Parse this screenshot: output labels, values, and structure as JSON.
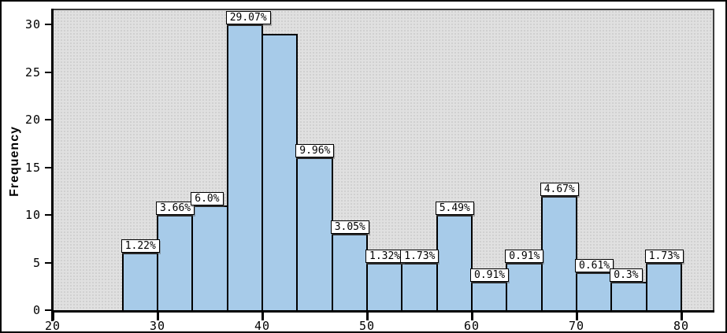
{
  "chart_data": {
    "type": "bar",
    "subtype": "histogram",
    "title": "",
    "xlabel": "",
    "ylabel": "Frequency",
    "grid": false,
    "legend_position": "none",
    "xlim": [
      20,
      83
    ],
    "ylim": [
      0,
      31.6
    ],
    "x_tick_labels": [
      "20",
      "30",
      "40",
      "50",
      "60",
      "70",
      "80"
    ],
    "x_tick_values": [
      20,
      30,
      40,
      50,
      60,
      70,
      80
    ],
    "y_tick_labels": [
      "0",
      "5",
      "10",
      "15",
      "20",
      "25",
      "30"
    ],
    "y_tick_values": [
      0,
      5,
      10,
      15,
      20,
      25,
      30
    ],
    "bin_width": 3.3333,
    "bars": [
      {
        "bin_start": 26.67,
        "frequency": 6,
        "label": "1.22%"
      },
      {
        "bin_start": 30.0,
        "frequency": 10,
        "label": "3.66%"
      },
      {
        "bin_start": 33.33,
        "frequency": 11,
        "label": "6.0%"
      },
      {
        "bin_start": 36.67,
        "frequency": 30,
        "label": "29.07%"
      },
      {
        "bin_start": 40.0,
        "frequency": 29,
        "label": ""
      },
      {
        "bin_start": 43.33,
        "frequency": 16,
        "label": "9.96%"
      },
      {
        "bin_start": 46.67,
        "frequency": 8,
        "label": "3.05%"
      },
      {
        "bin_start": 50.0,
        "frequency": 5,
        "label": "1.32%"
      },
      {
        "bin_start": 53.33,
        "frequency": 5,
        "label": "1.73%"
      },
      {
        "bin_start": 56.67,
        "frequency": 10,
        "label": "5.49%"
      },
      {
        "bin_start": 60.0,
        "frequency": 3,
        "label": "0.91%"
      },
      {
        "bin_start": 63.33,
        "frequency": 5,
        "label": "0.91%"
      },
      {
        "bin_start": 66.67,
        "frequency": 12,
        "label": "4.67%"
      },
      {
        "bin_start": 70.0,
        "frequency": 4,
        "label": "0.61%"
      },
      {
        "bin_start": 73.33,
        "frequency": 3,
        "label": "0.3%"
      },
      {
        "bin_start": 76.67,
        "frequency": 5,
        "label": "1.73%"
      }
    ],
    "colors": {
      "bar_fill": "#a7cbe9",
      "bar_border": "#000000",
      "plot_background": "#e0e0e0",
      "label_box_background": "#ffffff",
      "label_box_border": "#000000",
      "axis_color": "#000000",
      "frame_border": "#000000"
    }
  }
}
